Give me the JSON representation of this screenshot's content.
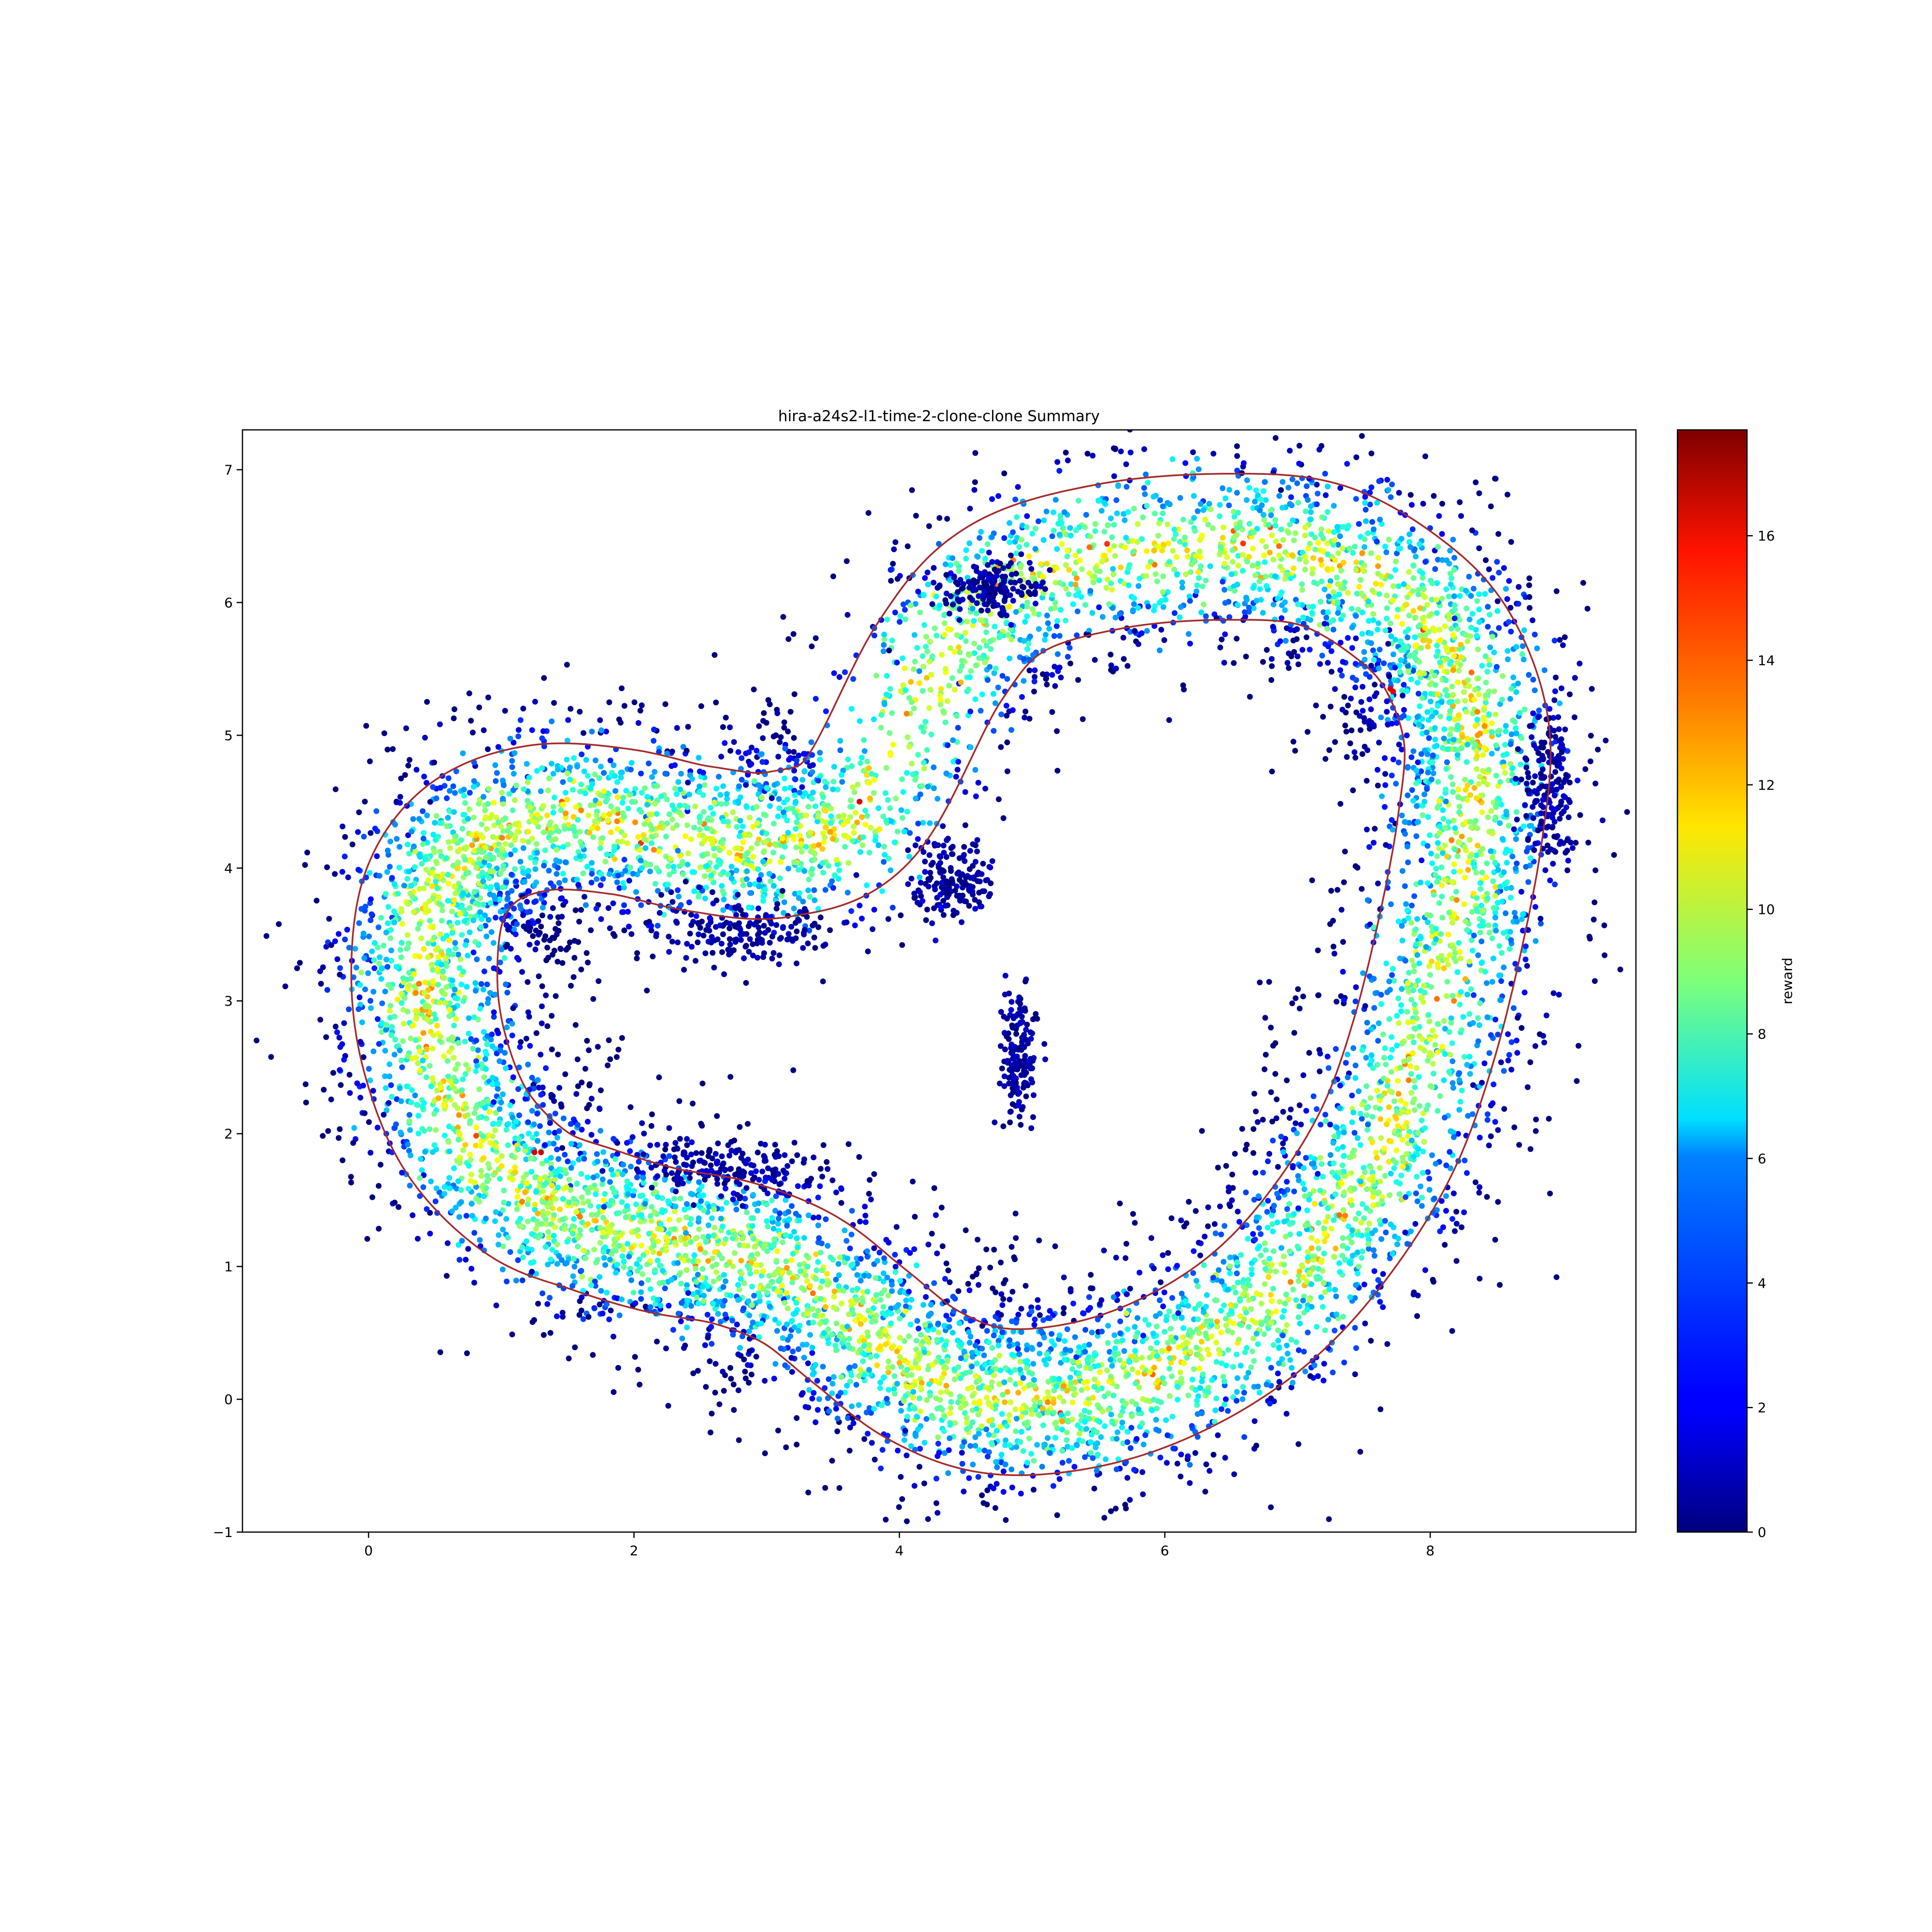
{
  "chart_data": {
    "type": "scatter",
    "title": "hira-a24s2-l1-time-2-clone-clone Summary",
    "xlim": [
      -0.95,
      9.55
    ],
    "ylim": [
      -1.0,
      7.3
    ],
    "x_ticks": [
      0,
      2,
      4,
      6,
      8
    ],
    "y_ticks": [
      -1,
      0,
      1,
      2,
      3,
      4,
      5,
      6,
      7
    ],
    "x_tick_labels": [
      "0",
      "2",
      "4",
      "6",
      "8"
    ],
    "y_tick_labels": [
      "−1",
      "0",
      "1",
      "2",
      "3",
      "4",
      "5",
      "6",
      "7"
    ],
    "colorbar": {
      "label": "reward",
      "colormap": "jet",
      "range": [
        0,
        17.7
      ],
      "ticks": [
        0,
        2,
        4,
        6,
        8,
        10,
        12,
        14,
        16
      ],
      "tick_labels": [
        "0",
        "2",
        "4",
        "6",
        "8",
        "10",
        "12",
        "14",
        "16"
      ]
    },
    "track_boundary_color": "#a52a2a",
    "track_centerline": [
      [
        3.7,
        4.45
      ],
      [
        4.3,
        5.55
      ],
      [
        4.8,
        6.1
      ],
      [
        5.6,
        6.35
      ],
      [
        6.5,
        6.42
      ],
      [
        7.2,
        6.35
      ],
      [
        7.8,
        6.0
      ],
      [
        8.15,
        5.6
      ],
      [
        8.35,
        5.0
      ],
      [
        8.3,
        4.3
      ],
      [
        8.15,
        3.5
      ],
      [
        7.95,
        2.7
      ],
      [
        7.7,
        2.0
      ],
      [
        7.35,
        1.4
      ],
      [
        6.9,
        0.85
      ],
      [
        6.4,
        0.45
      ],
      [
        5.8,
        0.15
      ],
      [
        5.2,
        0.0
      ],
      [
        4.65,
        0.0
      ],
      [
        4.15,
        0.2
      ],
      [
        3.7,
        0.55
      ],
      [
        3.25,
        0.9
      ],
      [
        2.75,
        1.1
      ],
      [
        2.2,
        1.2
      ],
      [
        1.7,
        1.35
      ],
      [
        1.2,
        1.55
      ],
      [
        0.75,
        2.0
      ],
      [
        0.5,
        2.6
      ],
      [
        0.42,
        3.2
      ],
      [
        0.5,
        3.8
      ],
      [
        0.8,
        4.2
      ],
      [
        1.3,
        4.38
      ],
      [
        1.9,
        4.35
      ],
      [
        2.5,
        4.22
      ],
      [
        3.1,
        4.18
      ]
    ],
    "track_half_width": 0.55,
    "dot_band_half_width": 0.85,
    "stray_dot_clusters": [
      {
        "center": [
          2.8,
          3.55
        ],
        "spread": [
          0.7,
          0.25
        ]
      },
      {
        "center": [
          2.7,
          1.75
        ],
        "spread": [
          0.7,
          0.2
        ]
      },
      {
        "center": [
          4.4,
          3.9
        ],
        "spread": [
          0.3,
          0.3
        ]
      },
      {
        "center": [
          4.7,
          6.1
        ],
        "spread": [
          0.35,
          0.2
        ]
      },
      {
        "center": [
          8.9,
          4.6
        ],
        "spread": [
          0.2,
          0.6
        ]
      },
      {
        "center": [
          4.9,
          2.6
        ],
        "spread": [
          0.15,
          0.5
        ]
      }
    ],
    "reward_profile": "highest near track centerline (about 8-12), decreasing toward the edges (0-4 at outer fringe); a few red points (about 16) near (1.25, 1.85), (3.7, 4.5) and (7.7, 5.35)"
  }
}
